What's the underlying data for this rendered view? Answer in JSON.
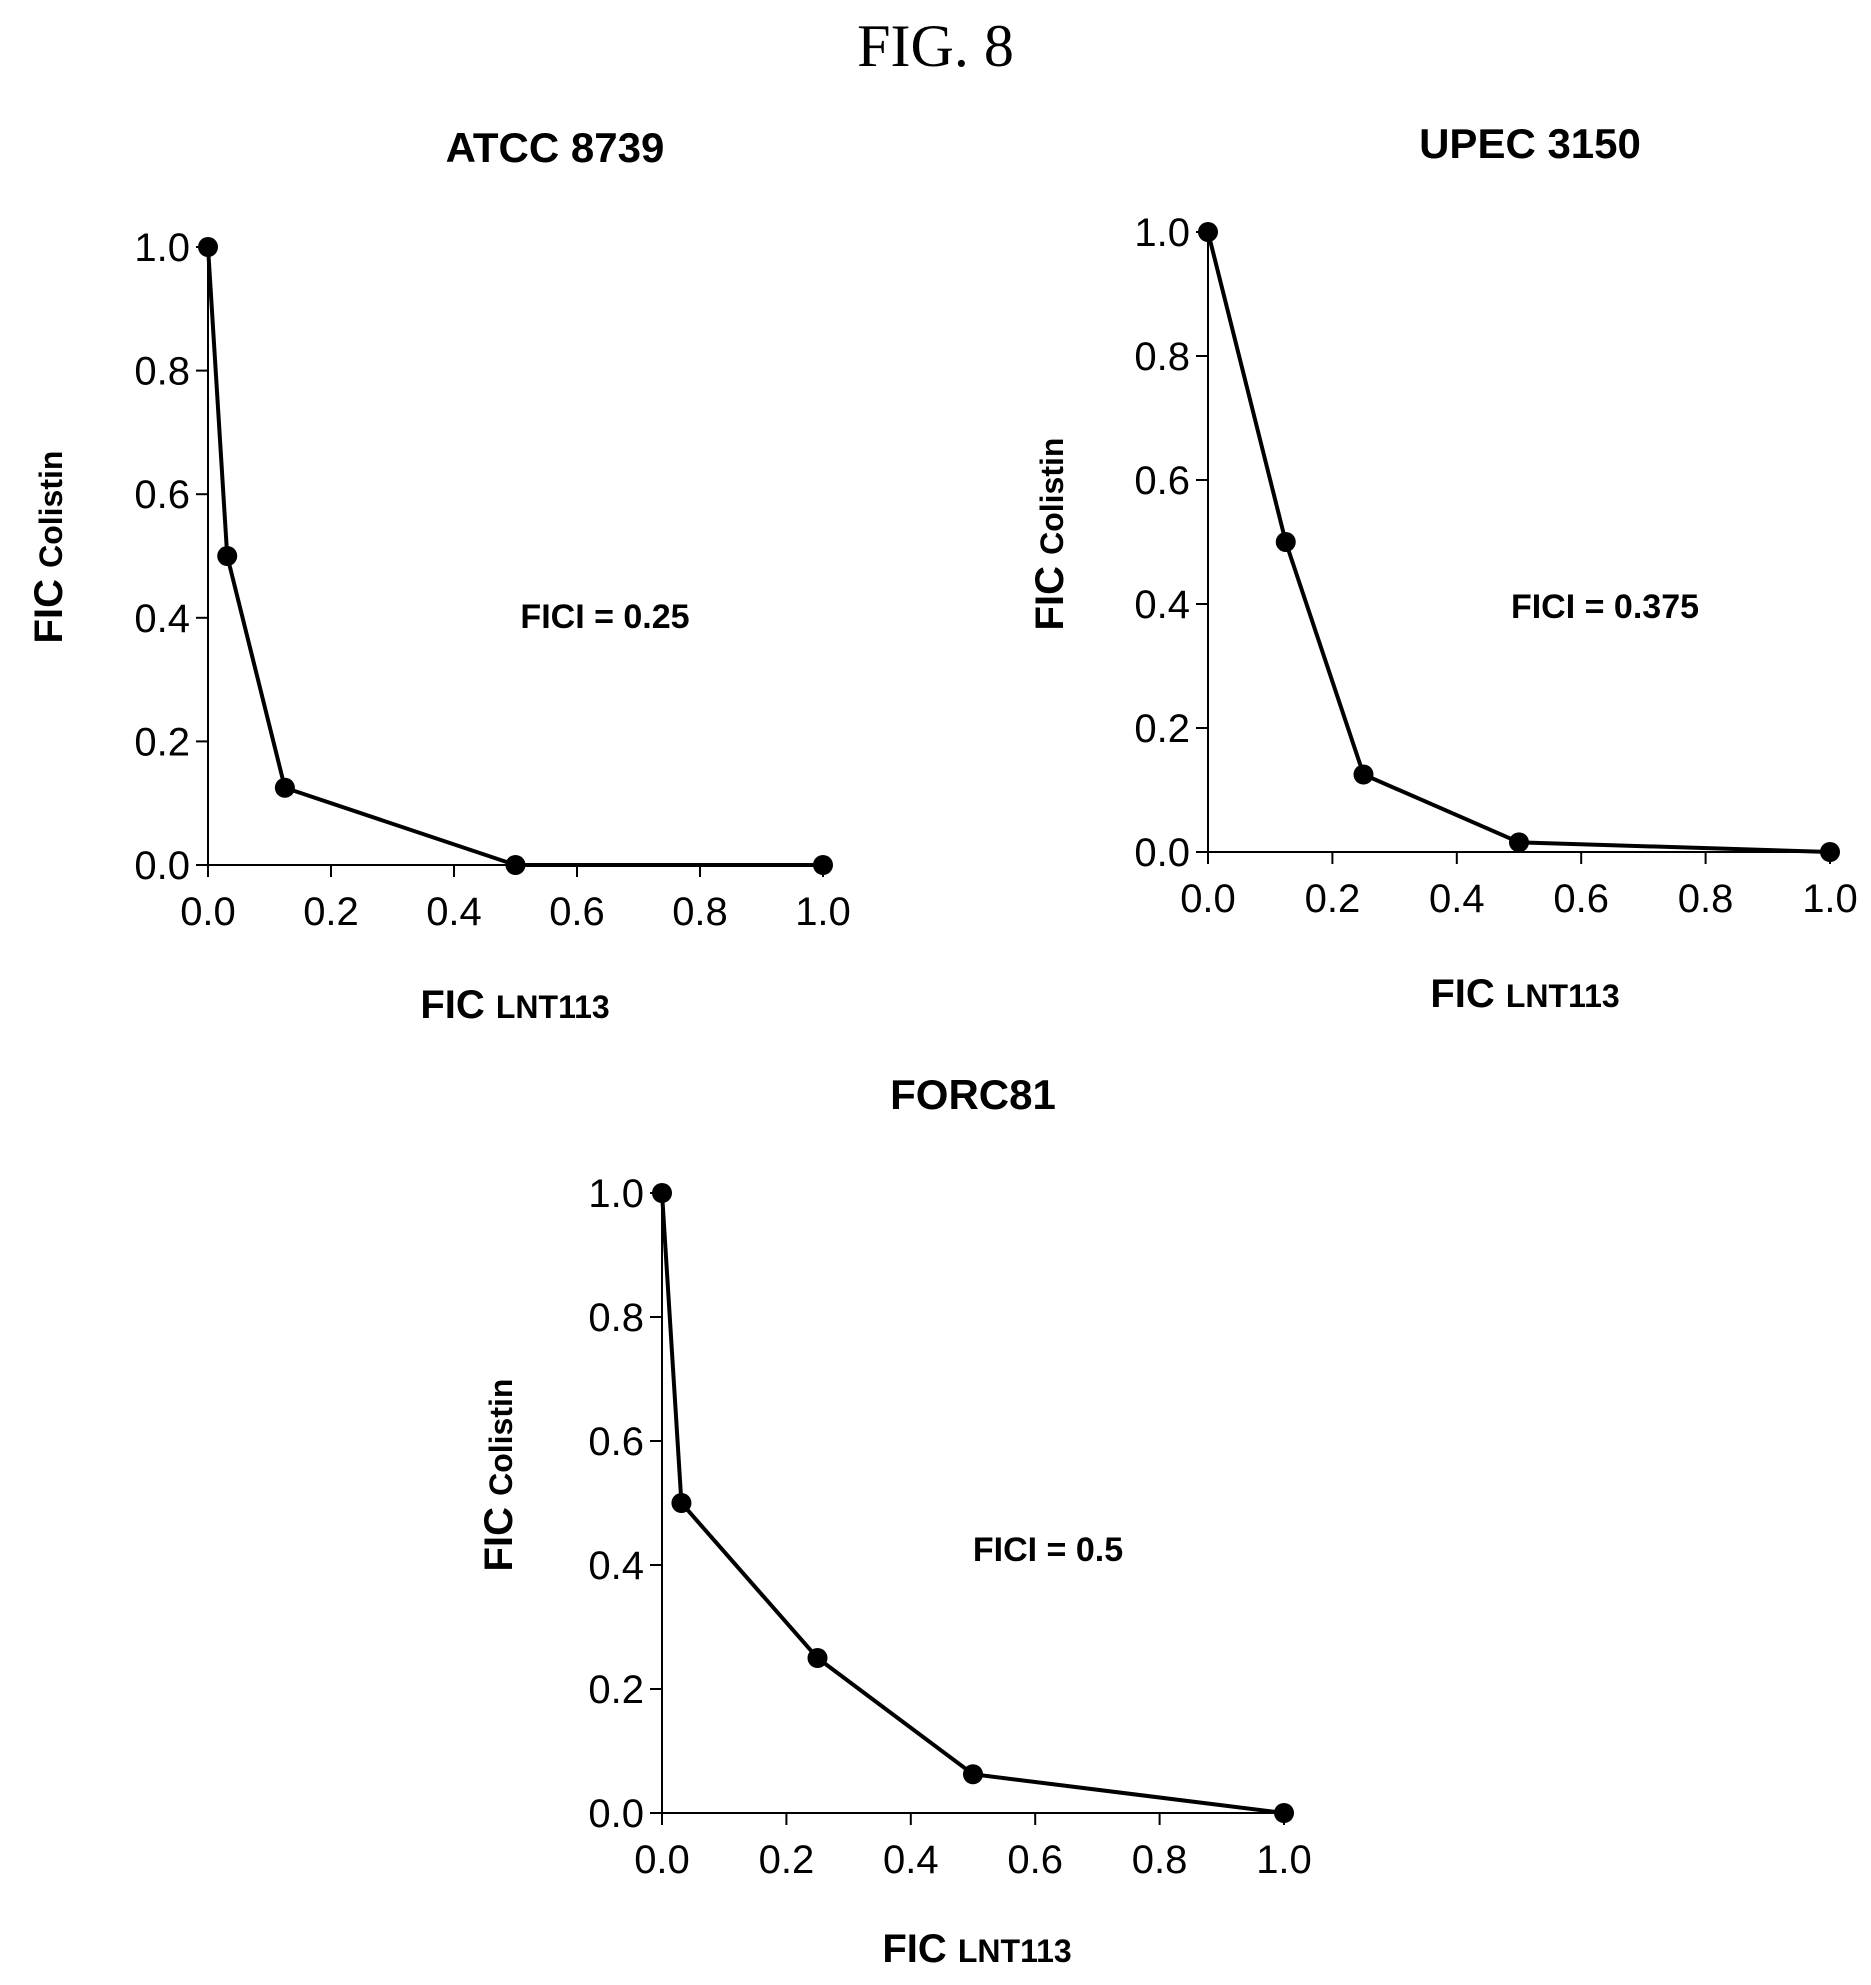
{
  "figure": {
    "title": "FIG. 8"
  },
  "chart_data": [
    {
      "type": "line",
      "title": "ATCC 8739",
      "xlabel": {
        "main": "FIC",
        "sub": "LNT113"
      },
      "ylabel": {
        "main": "FIC",
        "sub": "Colistin"
      },
      "xlim": [
        0,
        1
      ],
      "ylim": [
        0,
        1
      ],
      "xticks": [
        "0.0",
        "0.2",
        "0.4",
        "0.6",
        "0.8",
        "1.0"
      ],
      "yticks": [
        "0.0",
        "0.2",
        "0.4",
        "0.6",
        "0.8",
        "1.0"
      ],
      "annotation": "FICI = 0.25",
      "x": [
        0.0,
        0.03125,
        0.125,
        0.5,
        1.0
      ],
      "y": [
        1.0,
        0.5,
        0.125,
        0.0,
        0.0
      ]
    },
    {
      "type": "line",
      "title": "UPEC 3150",
      "xlabel": {
        "main": "FIC",
        "sub": "LNT113"
      },
      "ylabel": {
        "main": "FIC",
        "sub": "Colistin"
      },
      "xlim": [
        0,
        1
      ],
      "ylim": [
        0,
        1
      ],
      "xticks": [
        "0.0",
        "0.2",
        "0.4",
        "0.6",
        "0.8",
        "1.0"
      ],
      "yticks": [
        "0.0",
        "0.2",
        "0.4",
        "0.6",
        "0.8",
        "1.0"
      ],
      "annotation": "FICI = 0.375",
      "x": [
        0.0,
        0.125,
        0.25,
        0.5,
        1.0
      ],
      "y": [
        1.0,
        0.5,
        0.125,
        0.015625,
        0.0
      ]
    },
    {
      "type": "line",
      "title": "FORC81",
      "xlabel": {
        "main": "FIC",
        "sub": "LNT113"
      },
      "ylabel": {
        "main": "FIC",
        "sub": "Colistin"
      },
      "xlim": [
        0,
        1
      ],
      "ylim": [
        0,
        1
      ],
      "xticks": [
        "0.0",
        "0.2",
        "0.4",
        "0.6",
        "0.8",
        "1.0"
      ],
      "yticks": [
        "0.0",
        "0.2",
        "0.4",
        "0.6",
        "0.8",
        "1.0"
      ],
      "annotation": "FICI = 0.5",
      "x": [
        0.0,
        0.03125,
        0.25,
        0.5,
        1.0
      ],
      "y": [
        1.0,
        0.5,
        0.25,
        0.0625,
        0.0
      ]
    }
  ]
}
